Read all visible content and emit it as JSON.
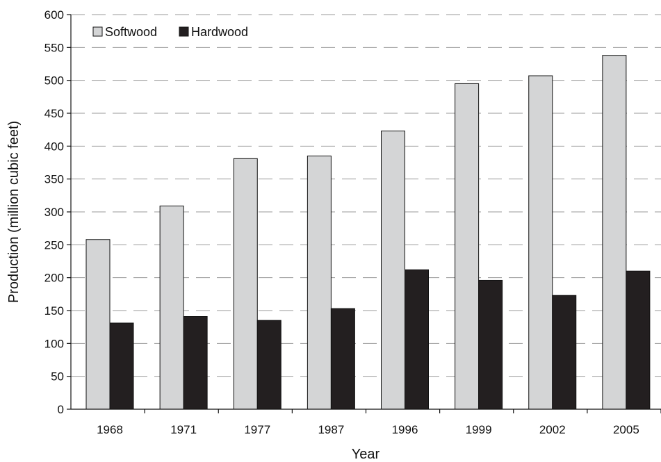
{
  "chart_data": {
    "type": "bar",
    "categories": [
      "1968",
      "1971",
      "1977",
      "1987",
      "1996",
      "1999",
      "2002",
      "2005"
    ],
    "series": [
      {
        "name": "Softwood",
        "color": "#d4d5d6",
        "values": [
          258,
          309,
          381,
          385,
          423,
          495,
          507,
          538
        ]
      },
      {
        "name": "Hardwood",
        "color": "#231f20",
        "values": [
          131,
          141,
          135,
          153,
          212,
          196,
          173,
          210
        ]
      }
    ],
    "title": "",
    "xlabel": "Year",
    "ylabel": "Production (million cubic feet)",
    "ylim": [
      0,
      600
    ],
    "yticks": [
      "0",
      "50",
      "100",
      "150",
      "200",
      "250",
      "300",
      "350",
      "400",
      "450",
      "500",
      "550",
      "600"
    ],
    "grid": "horizontal dashed",
    "legend_position": "top-left"
  }
}
